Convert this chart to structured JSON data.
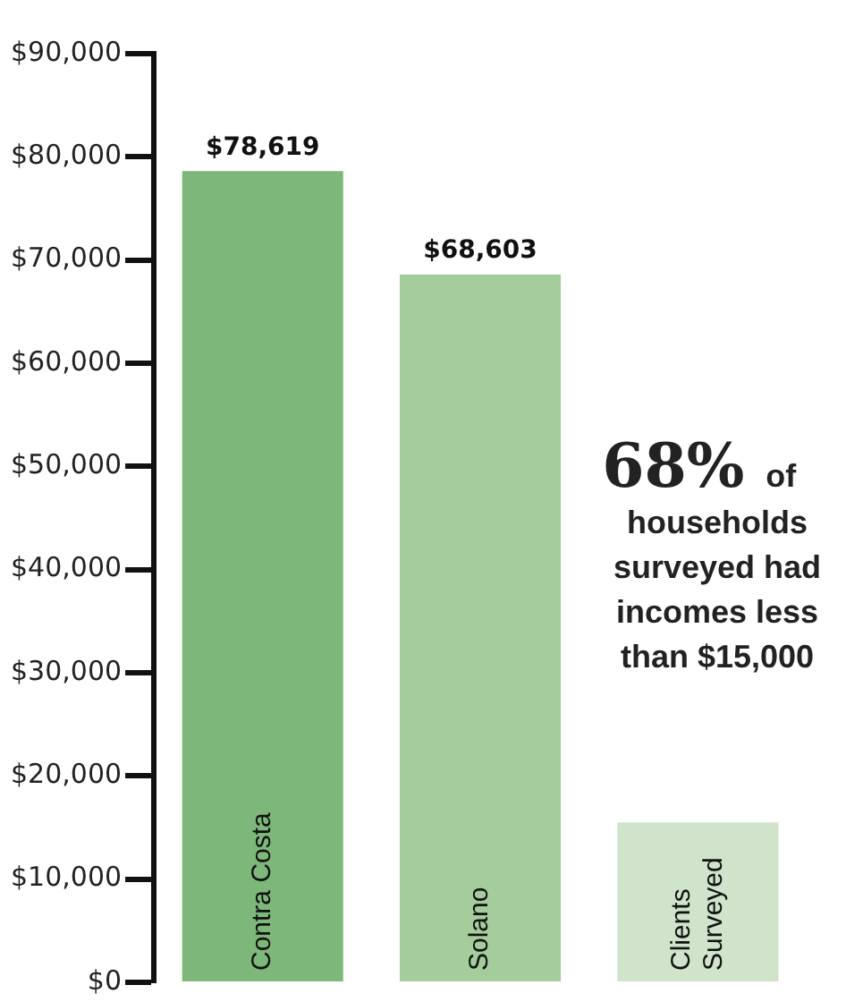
{
  "chart_data": {
    "type": "bar",
    "categories": [
      "Contra Costa",
      "Solano",
      "Clients Surveyed"
    ],
    "values": [
      78619,
      68603,
      15500
    ],
    "colors": [
      "#7db77a",
      "#a5cd9c",
      "#cfe4ca"
    ],
    "value_labels": [
      "$78,619",
      "$68,603",
      null
    ],
    "ylim": [
      0,
      90000
    ],
    "yticks": [
      {
        "value": 0,
        "label": "$0"
      },
      {
        "value": 10000,
        "label": "$10,000"
      },
      {
        "value": 20000,
        "label": "$20,000"
      },
      {
        "value": 30000,
        "label": "$30,000"
      },
      {
        "value": 40000,
        "label": "$40,000"
      },
      {
        "value": 50000,
        "label": "$50,000"
      },
      {
        "value": 60000,
        "label": "$60,000"
      },
      {
        "value": 70000,
        "label": "$70,000"
      },
      {
        "value": 80000,
        "label": "$80,000"
      },
      {
        "value": 90000,
        "label": "$90,000"
      }
    ],
    "annotations": [
      "68% of households surveyed had incomes less than $15,000"
    ],
    "grid": false,
    "legend": false
  }
}
